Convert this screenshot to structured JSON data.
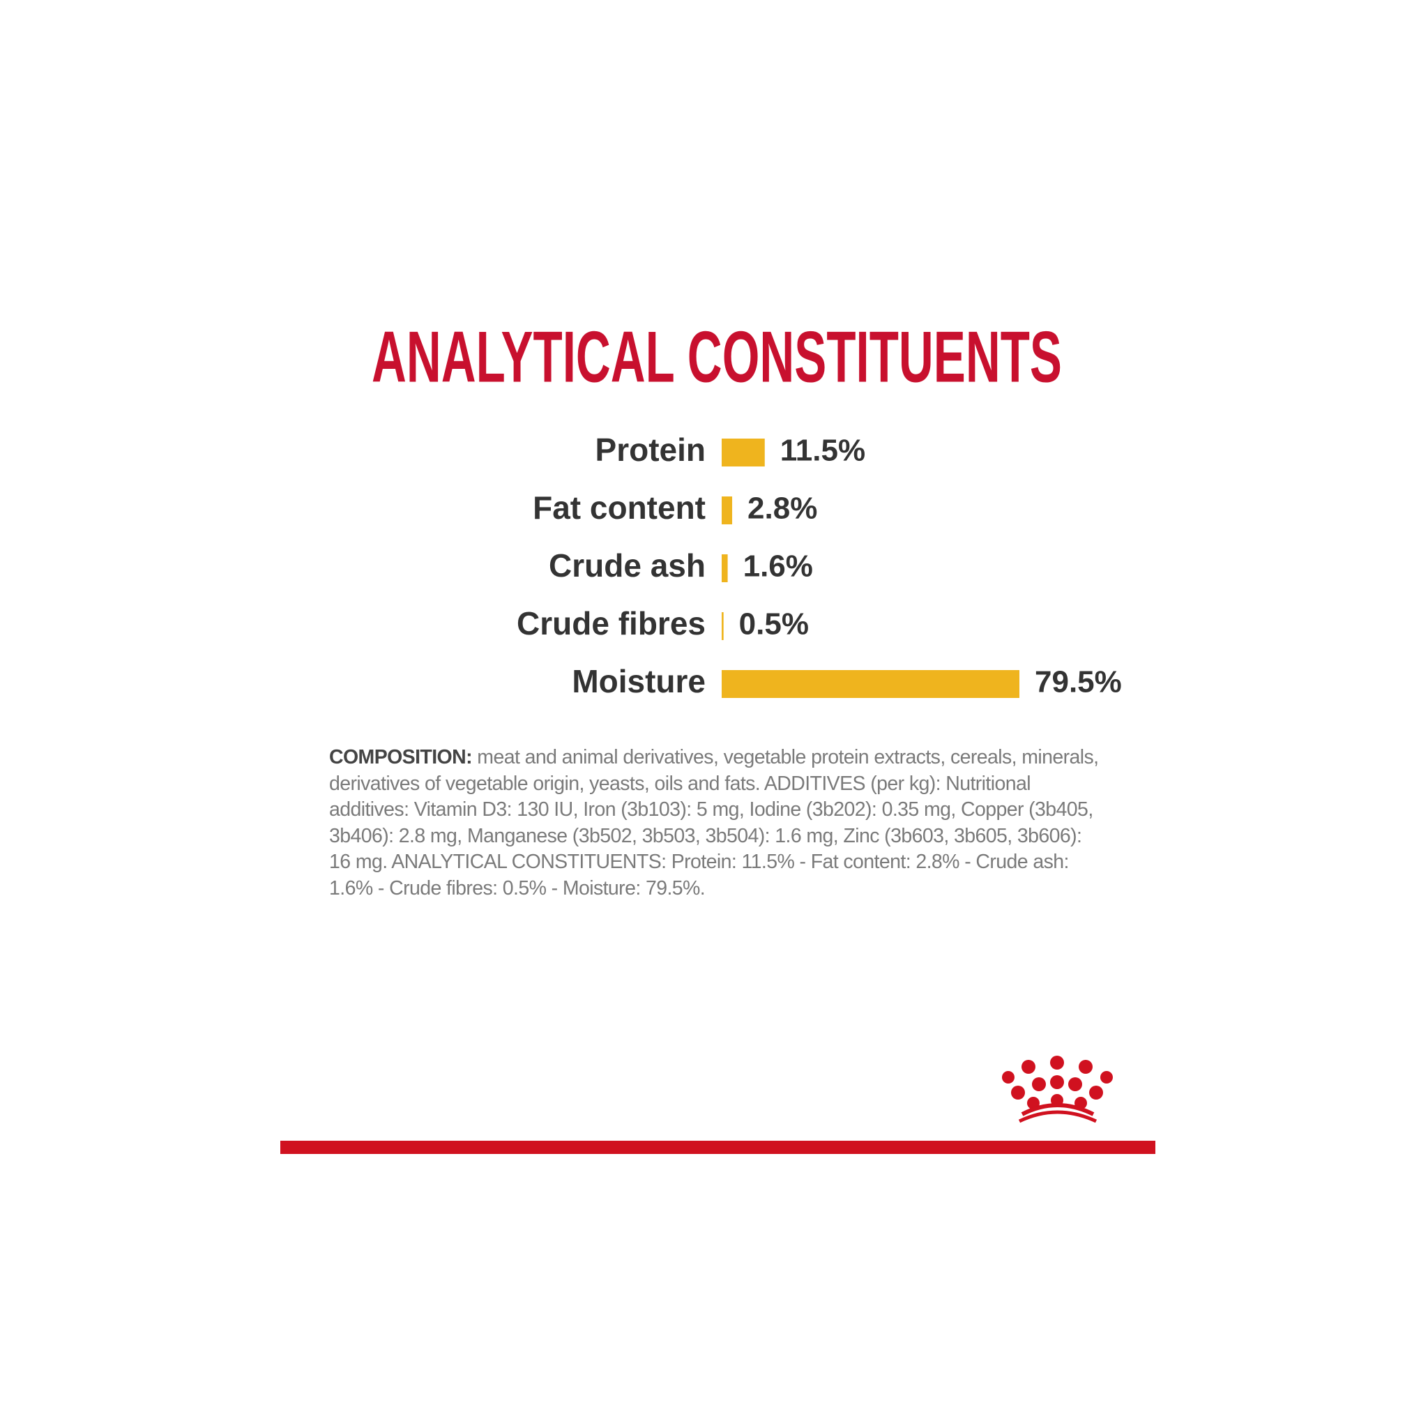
{
  "chart_data": {
    "type": "bar",
    "orientation": "horizontal",
    "title": "ANALYTICAL CONSTITUENTS",
    "categories": [
      "Protein",
      "Fat content",
      "Crude ash",
      "Crude fibres",
      "Moisture"
    ],
    "values": [
      11.5,
      2.8,
      1.6,
      0.5,
      79.5
    ],
    "value_labels": [
      "11.5%",
      "2.8%",
      "1.6%",
      "0.5%",
      "79.5%"
    ],
    "color": "#efb41e"
  },
  "composition": {
    "label": "COMPOSITION:",
    "text": "meat and animal derivatives, vegetable protein extracts, cereals, minerals, derivatives of vegetable origin, yeasts, oils and fats. ADDITIVES (per kg): Nutritional additives: Vitamin D3: 130 IU, Iron (3b103): 5 mg, Iodine (3b202): 0.35 mg, Copper (3b405, 3b406): 2.8 mg, Manganese (3b502, 3b503, 3b504): 1.6 mg, Zinc (3b603, 3b605, 3b606): 16 mg. ANALYTICAL CONSTITUENTS: Protein: 11.5% - Fat content: 2.8% - Crude ash: 1.6% - Crude fibres: 0.5% - Moisture: 79.5%."
  }
}
